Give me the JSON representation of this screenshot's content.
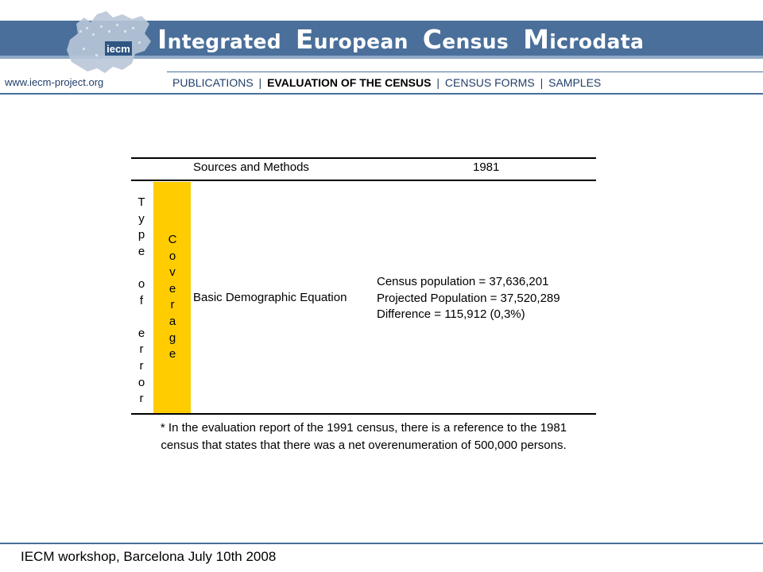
{
  "header": {
    "title_parts": [
      {
        "cap": "I",
        "rest": "ntegrated "
      },
      {
        "cap": "E",
        "rest": "uropean "
      },
      {
        "cap": "C",
        "rest": "ensus "
      },
      {
        "cap": "M",
        "rest": "icrodata"
      }
    ],
    "logo_text": "iecm",
    "site_url": "www.iecm-project.org",
    "nav": [
      "PUBLICATIONS",
      "EVALUATION OF THE CENSUS",
      "CENSUS FORMS",
      "SAMPLES"
    ],
    "separator": "|"
  },
  "table": {
    "col_header_sources": "Sources and Methods",
    "col_header_year": "1981",
    "row_group_letters": [
      "T",
      "y",
      "p",
      "e",
      "",
      "o",
      "f",
      "",
      "e",
      "r",
      "r",
      "o",
      "r"
    ],
    "coverage_letters": [
      "C",
      "o",
      "v",
      "e",
      "r",
      "a",
      "g",
      "e"
    ],
    "method": "Basic Demographic Equation",
    "stats": [
      "Census population = 37,636,201",
      "Projected Population = 37,520,289",
      "Difference = 115,912 (0,3%)"
    ],
    "footnote_line1": "* In the evaluation report of the 1991 census, there is a reference to the 1981",
    "footnote_line2": "census that states that there was a net overenumeration of 500,000 persons."
  },
  "footer": {
    "text": "IECM workshop, Barcelona July 10th 2008"
  },
  "colors": {
    "header_band": "#4a6f9a",
    "coverage_fill": "#ffcc00",
    "nav_text": "#203f6a"
  }
}
